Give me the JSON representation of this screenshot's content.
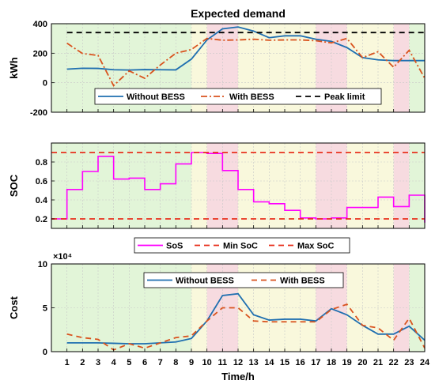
{
  "figure": {
    "x_label": "Time/h",
    "x_ticks": [
      "1",
      "2",
      "3",
      "4",
      "5",
      "6",
      "7",
      "8",
      "9",
      "10",
      "11",
      "12",
      "13",
      "14",
      "15",
      "16",
      "17",
      "18",
      "19",
      "20",
      "21",
      "22",
      "23",
      "24"
    ],
    "band_colors": {
      "green": "#e2f5d8",
      "yellow": "#f9f8dc",
      "red": "#f7dbe0"
    },
    "bands": [
      {
        "from": 0,
        "to": 9,
        "color": "green"
      },
      {
        "from": 9,
        "to": 10,
        "color": "yellow"
      },
      {
        "from": 10,
        "to": 12,
        "color": "red"
      },
      {
        "from": 12,
        "to": 17,
        "color": "yellow"
      },
      {
        "from": 17,
        "to": 19,
        "color": "red"
      },
      {
        "from": 19,
        "to": 22,
        "color": "yellow"
      },
      {
        "from": 22,
        "to": 23,
        "color": "red"
      },
      {
        "from": 23,
        "to": 24,
        "color": "green"
      }
    ]
  },
  "chart_data": [
    {
      "type": "line",
      "title": "Expected demand",
      "ylabel": "kWh",
      "xlim": [
        0,
        24
      ],
      "ylim": [
        -200,
        400
      ],
      "yticks": [
        -200,
        0,
        200,
        400
      ],
      "x": [
        1,
        2,
        3,
        4,
        5,
        6,
        7,
        8,
        9,
        10,
        11,
        12,
        13,
        14,
        15,
        16,
        17,
        18,
        19,
        20,
        21,
        22,
        23,
        24
      ],
      "legend": {
        "placement": "bottom",
        "entries": [
          "Without BESS",
          "With BESS",
          "Peak limit"
        ]
      },
      "series": [
        {
          "name": "Without BESS",
          "color": "#1f6fb0",
          "style": "solid",
          "values": [
            92,
            98,
            97,
            88,
            86,
            89,
            88,
            87,
            160,
            290,
            365,
            378,
            350,
            305,
            318,
            318,
            295,
            280,
            238,
            170,
            155,
            150,
            150,
            150
          ]
        },
        {
          "name": "With BESS",
          "color": "#d9531e",
          "style": "dashdot",
          "values": [
            268,
            198,
            185,
            -20,
            80,
            30,
            120,
            200,
            225,
            300,
            288,
            290,
            295,
            288,
            290,
            290,
            285,
            270,
            300,
            170,
            210,
            105,
            220,
            30
          ]
        },
        {
          "name": "Peak limit",
          "color": "#000000",
          "style": "dashed",
          "values": [
            340,
            340,
            340,
            340,
            340,
            340,
            340,
            340,
            340,
            340,
            340,
            340,
            340,
            340,
            340,
            340,
            340,
            340,
            340,
            340,
            340,
            340,
            340,
            340
          ]
        }
      ]
    },
    {
      "type": "line",
      "ylabel": "SOC",
      "xlim": [
        0,
        24
      ],
      "ylim": [
        0.1,
        1.0
      ],
      "yticks": [
        0.2,
        0.4,
        0.6,
        0.8
      ],
      "legend": {
        "placement": "bottom",
        "entries": [
          "SoS",
          "Min SoC",
          "Max SoC"
        ]
      },
      "series": [
        {
          "name": "SoS",
          "color": "#ff00ff",
          "style": "step",
          "x": [
            0,
            1,
            2,
            3,
            4,
            5,
            6,
            7,
            8,
            9,
            10,
            11,
            12,
            13,
            14,
            15,
            16,
            17,
            18,
            19,
            20,
            21,
            22,
            23,
            24
          ],
          "values": [
            0.2,
            0.51,
            0.7,
            0.86,
            0.62,
            0.63,
            0.51,
            0.57,
            0.78,
            0.9,
            0.89,
            0.71,
            0.51,
            0.38,
            0.36,
            0.29,
            0.21,
            0.2,
            0.21,
            0.32,
            0.32,
            0.43,
            0.33,
            0.45,
            0.16
          ]
        },
        {
          "name": "Min SoC",
          "color": "#e8301c",
          "style": "dashed",
          "x": [
            0,
            24
          ],
          "values": [
            0.2,
            0.2
          ]
        },
        {
          "name": "Max SoC",
          "color": "#e8301c",
          "style": "dashed",
          "x": [
            0,
            24
          ],
          "values": [
            0.9,
            0.9
          ]
        }
      ]
    },
    {
      "type": "line",
      "ylabel": "Cost",
      "y_exponent": "×10⁴",
      "xlim": [
        0,
        24
      ],
      "ylim": [
        0,
        10
      ],
      "yticks": [
        0,
        5,
        10
      ],
      "x": [
        1,
        2,
        3,
        4,
        5,
        6,
        7,
        8,
        9,
        10,
        11,
        12,
        13,
        14,
        15,
        16,
        17,
        18,
        19,
        20,
        21,
        22,
        23,
        24
      ],
      "legend": {
        "placement": "top",
        "entries": [
          "Without BESS",
          "With BESS"
        ]
      },
      "series": [
        {
          "name": "Without BESS",
          "color": "#1f6fb0",
          "style": "solid",
          "values": [
            1.0,
            1.0,
            1.0,
            0.95,
            0.9,
            0.9,
            1.0,
            1.1,
            1.5,
            3.5,
            6.4,
            6.6,
            4.2,
            3.6,
            3.7,
            3.7,
            3.5,
            4.9,
            4.2,
            3.0,
            2.0,
            2.0,
            2.9,
            1.3
          ]
        },
        {
          "name": "With BESS",
          "color": "#d9531e",
          "style": "dashed",
          "values": [
            2.0,
            1.6,
            1.4,
            0.2,
            0.9,
            0.4,
            1.0,
            1.6,
            1.8,
            3.5,
            5.0,
            5.0,
            3.5,
            3.4,
            3.4,
            3.4,
            3.4,
            4.8,
            5.4,
            3.0,
            2.7,
            1.3,
            3.8,
            0.4
          ]
        }
      ]
    }
  ]
}
